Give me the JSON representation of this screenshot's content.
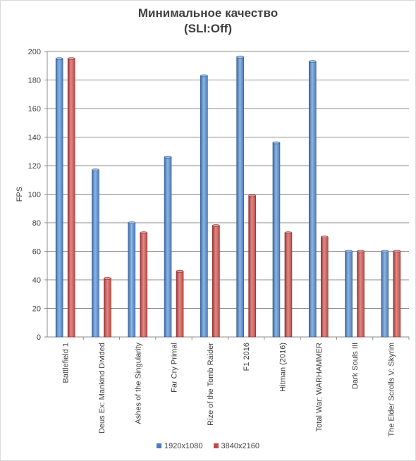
{
  "chart_data": {
    "type": "bar",
    "title": "Минимальное качество",
    "subtitle": "(SLI:Off)",
    "ylabel": "FPS",
    "ylim": [
      0,
      200
    ],
    "yticks": [
      0,
      20,
      40,
      60,
      80,
      100,
      120,
      140,
      160,
      180,
      200
    ],
    "ytick_labels": [
      "0",
      "20",
      "40",
      "60",
      "80",
      "100",
      "120",
      "140",
      "160",
      "180",
      "200"
    ],
    "grid": true,
    "legend_position": "bottom",
    "categories": [
      "Battlefield 1",
      "Deus Ex: Mankind Divided",
      "Ashes of the Singularity",
      "Far Cry Primal",
      "Rize of the Tomb Raider",
      "F1 2016",
      "Hitman (2016)",
      "Total War: WARHAMMER",
      "Dark Souls III",
      "The Elder Scrolls V: Skyrim"
    ],
    "series": [
      {
        "name": "1920x1080",
        "color": "#4a7ebb",
        "values": [
          195,
          117,
          80,
          126,
          183,
          196,
          136,
          193,
          60,
          60
        ]
      },
      {
        "name": "3840x2160",
        "color": "#be4b48",
        "values": [
          195,
          41,
          73,
          46,
          78,
          99,
          73,
          70,
          60,
          60
        ]
      }
    ]
  }
}
